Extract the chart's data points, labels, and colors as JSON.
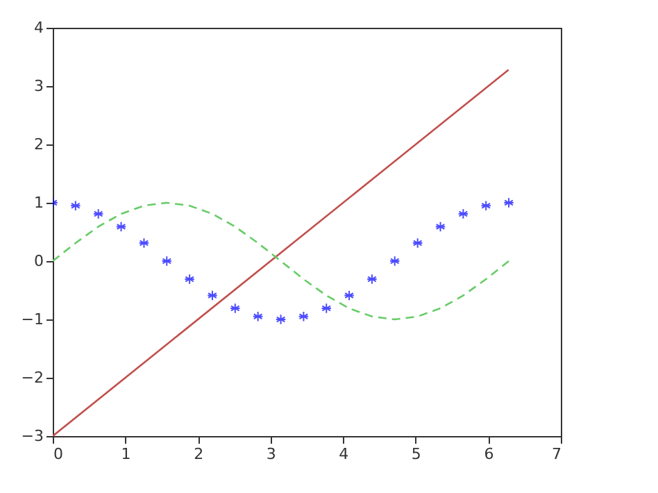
{
  "chart_data": {
    "type": "line",
    "xlim": [
      0,
      7
    ],
    "xticks": [
      0,
      1,
      2,
      3,
      4,
      5,
      6,
      7
    ],
    "ylim": [
      -3,
      4
    ],
    "yticks": [
      -3,
      -2,
      -1,
      0,
      1,
      2,
      3,
      4
    ],
    "grid": false,
    "series": [
      {
        "color": "#c0504d",
        "line_style": "solid",
        "marker": "none",
        "x": [
          0,
          6.28
        ],
        "values": [
          -3,
          3.28
        ]
      },
      {
        "color": "#66cc66",
        "line_style": "dashed",
        "marker": "none",
        "x": [
          0,
          0.314,
          0.628,
          0.942,
          1.257,
          1.571,
          1.885,
          2.199,
          2.513,
          2.827,
          3.142,
          3.456,
          3.77,
          4.084,
          4.398,
          4.712,
          5.027,
          5.341,
          5.655,
          5.969,
          6.283
        ],
        "values": [
          0,
          0.31,
          0.59,
          0.81,
          0.95,
          1,
          0.95,
          0.81,
          0.59,
          0.31,
          0,
          -0.31,
          -0.59,
          -0.81,
          -0.95,
          -1,
          -0.95,
          -0.81,
          -0.59,
          -0.31,
          0
        ]
      },
      {
        "type": "scatter",
        "color": "#0000ff",
        "marker": "cross",
        "x": [
          0,
          0.314,
          0.628,
          0.942,
          1.257,
          1.571,
          1.885,
          2.199,
          2.513,
          2.827,
          3.142,
          3.456,
          3.77,
          4.084,
          4.398,
          4.712,
          5.027,
          5.341,
          5.655,
          5.969,
          6.283
        ],
        "values": [
          1,
          0.95,
          0.81,
          0.59,
          0.31,
          0,
          -0.31,
          -0.59,
          -0.81,
          -0.95,
          -1,
          -0.95,
          -0.81,
          -0.59,
          -0.31,
          0,
          0.31,
          0.59,
          0.81,
          0.95,
          1
        ]
      }
    ]
  }
}
